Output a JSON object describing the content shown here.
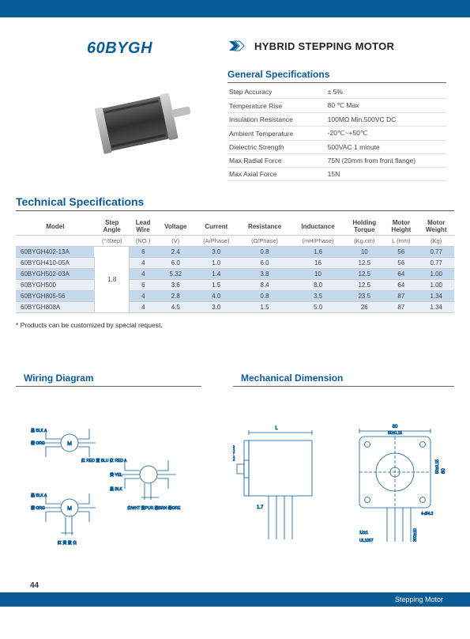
{
  "header": {
    "title": "60BYGH",
    "subtitle": "HYBRID STEPPING MOTOR",
    "chevron_fill": "#0a5c96",
    "chevron_stroke": "#0a5c96"
  },
  "general_specs": {
    "heading": "General Specifications",
    "rows": [
      {
        "label": "Step Accuracy",
        "value": "± 5%"
      },
      {
        "label": "Temperature Rise",
        "value": "80 ℃ Max"
      },
      {
        "label": "Insulation Resistance",
        "value": "100MΩ Min.500VC DC"
      },
      {
        "label": "Ambient Temperature",
        "value": "-20℃~+50℃"
      },
      {
        "label": "Dielectric Strength",
        "value": "500VAC 1 minute"
      },
      {
        "label": "Max Radial Force",
        "value": "75N (20mm from front flange)"
      },
      {
        "label": "Max Axial Force",
        "value": "15N"
      }
    ]
  },
  "tech_specs": {
    "heading": "Technical Specifications",
    "columns": [
      "Model",
      "Step Angle",
      "Lead Wire",
      "Voltage",
      "Current",
      "Resistance",
      "Inductance",
      "Holding Torque",
      "Motor Height",
      "Motor Weight"
    ],
    "units": [
      "",
      "(°/Step)",
      "(NO.)",
      "(V)",
      "(A/Phase)",
      "(Ω/Phase)",
      "(mH/Phase)",
      "(Kg.cm)",
      "L (mm)",
      "(Kg)"
    ],
    "step_angle": "1.8",
    "rows": [
      {
        "model": "60BYGH402-13A",
        "lead": "6",
        "volt": "2.4",
        "curr": "3.0",
        "res": "0.8",
        "ind": "1.6",
        "torq": "10",
        "h": "56",
        "w": "0.77"
      },
      {
        "model": "60BYGH410-05A",
        "lead": "4",
        "volt": "6.0",
        "curr": "1.0",
        "res": "6.0",
        "ind": "16",
        "torq": "12.5",
        "h": "56",
        "w": "0.77"
      },
      {
        "model": "60BYGH502-03A",
        "lead": "4",
        "volt": "5.32",
        "curr": "1.4",
        "res": "3.8",
        "ind": "10",
        "torq": "12.5",
        "h": "64",
        "w": "1.00"
      },
      {
        "model": "60BYGH500",
        "lead": "6",
        "volt": "3.6",
        "curr": "1.5",
        "res": "8.4",
        "ind": "8.0",
        "torq": "12.5",
        "h": "64",
        "w": "1.00"
      },
      {
        "model": "60BYGH805-56",
        "lead": "4",
        "volt": "2.8",
        "curr": "4.0",
        "res": "0.8",
        "ind": "3.5",
        "torq": "23.5",
        "h": "87",
        "w": "1.34"
      },
      {
        "model": "60BYGH808A",
        "lead": "4",
        "volt": "4.5",
        "curr": "3.0",
        "res": "1.5",
        "ind": "5.0",
        "torq": "26",
        "h": "87",
        "w": "1.34"
      }
    ],
    "note": "* Products can be customized by special request."
  },
  "diagrams": {
    "wiring_heading": "Wiring Diagram",
    "mech_heading": "Mechanical Dimension"
  },
  "footer": {
    "page_num": "44",
    "label": "Stepping Motor"
  },
  "colors": {
    "brand": "#0a5c96",
    "row_even": "#c4d9ed",
    "row_odd": "#e9eff7"
  }
}
